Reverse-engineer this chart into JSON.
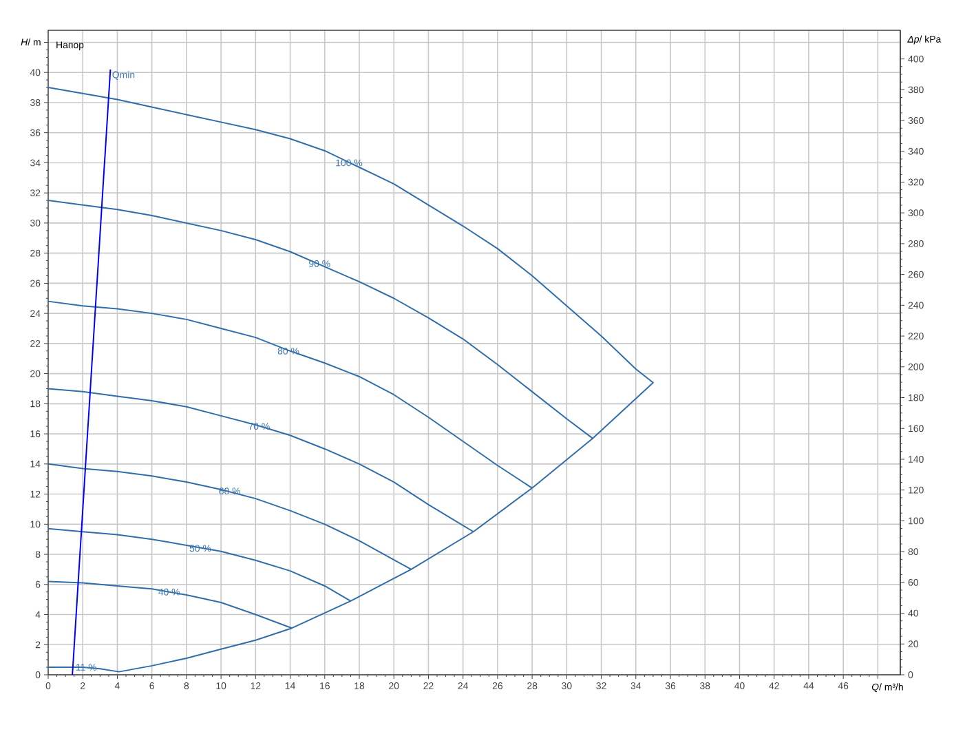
{
  "chart_data": {
    "type": "line",
    "xlabel": "*Q*/ m³/h",
    "ylabel": "*H*/ m",
    "y2label": "*Δp*/ kPa",
    "xlim": [
      0,
      49.3
    ],
    "ylim": [
      0,
      42.8
    ],
    "y2lim": [
      0,
      418.6
    ],
    "xticks": [
      0,
      2,
      4,
      6,
      8,
      10,
      12,
      14,
      16,
      18,
      20,
      22,
      24,
      26,
      28,
      30,
      32,
      34,
      36,
      38,
      40,
      42,
      44,
      46,
      {
        "value": 48,
        "label": null
      }
    ],
    "yticks": [
      0,
      2,
      4,
      6,
      8,
      10,
      12,
      14,
      16,
      18,
      20,
      22,
      24,
      26,
      28,
      30,
      32,
      34,
      36,
      38,
      40,
      {
        "value": 42,
        "label": null
      }
    ],
    "y2ticks": [
      0,
      20,
      40,
      60,
      80,
      100,
      120,
      140,
      160,
      180,
      200,
      220,
      240,
      260,
      280,
      300,
      320,
      340,
      360,
      380,
      400
    ],
    "grid": true,
    "series": [
      {
        "color": "#2f6eaa",
        "x": [
          0,
          2,
          4,
          6,
          8,
          10,
          12,
          14,
          16,
          18,
          20,
          22,
          24,
          26,
          28,
          30,
          32,
          34,
          35,
          31.5,
          28,
          24.6,
          21,
          17.5,
          14.1,
          12,
          10,
          8,
          6,
          4.1,
          3,
          2,
          0
        ],
        "values": [
          39.0,
          38.6,
          38.2,
          37.7,
          37.2,
          36.7,
          36.2,
          35.6,
          34.8,
          33.7,
          32.6,
          31.2,
          29.8,
          28.3,
          26.5,
          24.5,
          22.5,
          20.3,
          19.4,
          15.7,
          12.4,
          9.5,
          7.0,
          4.9,
          3.1,
          2.3,
          1.7,
          1.1,
          0.6,
          0.2,
          0.4,
          0.5,
          0.5
        ]
      },
      {
        "color": "#2f6eaa",
        "x": [
          0,
          2,
          4,
          6,
          8,
          10,
          12,
          14,
          16,
          18,
          20,
          22,
          24,
          26,
          28,
          30,
          31.5
        ],
        "values": [
          31.5,
          31.2,
          30.9,
          30.5,
          30.0,
          29.5,
          28.9,
          28.1,
          27.1,
          26.1,
          25.0,
          23.7,
          22.3,
          20.6,
          18.8,
          17.0,
          15.7
        ]
      },
      {
        "color": "#2f6eaa",
        "x": [
          0,
          2,
          4,
          6,
          8,
          10,
          12,
          14,
          16,
          18,
          20,
          22,
          24,
          26,
          28
        ],
        "values": [
          24.8,
          24.5,
          24.3,
          24.0,
          23.6,
          23.0,
          22.4,
          21.5,
          20.7,
          19.8,
          18.6,
          17.1,
          15.5,
          13.9,
          12.4
        ]
      },
      {
        "color": "#2f6eaa",
        "x": [
          0,
          2,
          4,
          6,
          8,
          10,
          12,
          14,
          16,
          18,
          20,
          22,
          24.6
        ],
        "values": [
          19.0,
          18.8,
          18.5,
          18.2,
          17.8,
          17.2,
          16.6,
          15.9,
          15.0,
          14.0,
          12.8,
          11.3,
          9.5
        ]
      },
      {
        "color": "#2f6eaa",
        "x": [
          0,
          2,
          4,
          6,
          8,
          10,
          12,
          14,
          16,
          18,
          21
        ],
        "values": [
          14.0,
          13.7,
          13.5,
          13.2,
          12.8,
          12.3,
          11.7,
          10.9,
          10.0,
          8.9,
          7.0
        ]
      },
      {
        "color": "#2f6eaa",
        "x": [
          0,
          2,
          4,
          6,
          8,
          10,
          12,
          14,
          16,
          17.5
        ],
        "values": [
          9.7,
          9.5,
          9.3,
          9.0,
          8.6,
          8.2,
          7.6,
          6.9,
          5.9,
          4.9
        ]
      },
      {
        "color": "#2f6eaa",
        "x": [
          0,
          2,
          4,
          6,
          8,
          10,
          12,
          14.1
        ],
        "values": [
          6.2,
          6.1,
          5.9,
          5.7,
          5.3,
          4.8,
          4.0,
          3.1
        ]
      },
      {
        "name": "Qmin",
        "color": "#0000ff",
        "x": [
          1.4,
          3.6
        ],
        "values": [
          0,
          40.2
        ]
      }
    ],
    "annotations": [
      "Напор",
      {
        "text": "100 %",
        "x": 17.4,
        "y": 34.0
      },
      {
        "text": "90 %",
        "x": 15.7,
        "y": 27.3
      },
      {
        "text": "80 %",
        "x": 13.9,
        "y": 21.5
      },
      {
        "text": "70 %",
        "x": 12.2,
        "y": 16.5
      },
      {
        "text": "60 %",
        "x": 10.5,
        "y": 12.2
      },
      {
        "text": "50 %",
        "x": 8.8,
        "y": 8.4
      },
      {
        "text": "40 %",
        "x": 7.0,
        "y": 5.5
      },
      {
        "text": "11 %",
        "x": 2.2,
        "y": 0.5
      }
    ]
  }
}
